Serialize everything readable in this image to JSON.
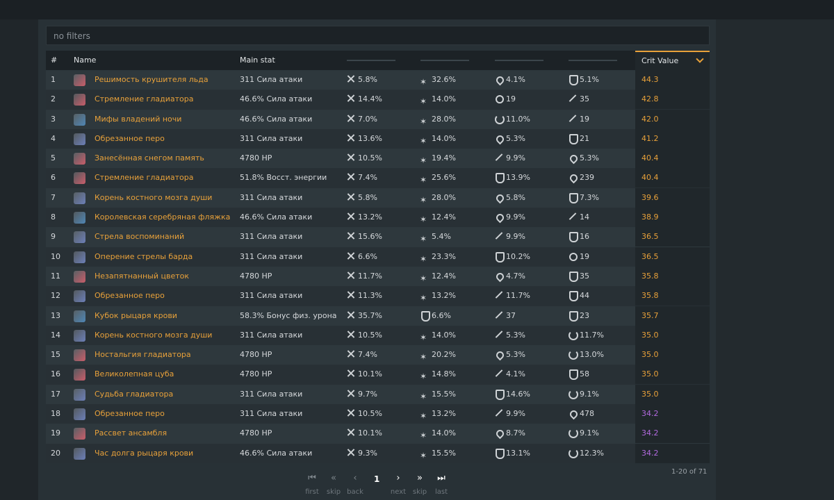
{
  "filter": {
    "text": "no filters"
  },
  "colors": {
    "accent": "#e8a13a",
    "crit_gold": "#e8a13a",
    "crit_purple": "#b26adf"
  },
  "header": {
    "num": "#",
    "name": "Name",
    "main_stat": "Main stat",
    "crit": "Crit Value"
  },
  "rows": [
    {
      "num": "1",
      "name": "Решимость крушителя льда",
      "icon": "flower-icon",
      "main": "311 Сила атаки",
      "s1": {
        "i": "sword",
        "v": "5.8%"
      },
      "s2": {
        "i": "star",
        "v": "32.6%"
      },
      "s3": {
        "i": "drop",
        "v": "4.1%"
      },
      "s4": {
        "i": "shield",
        "v": "5.1%"
      },
      "crit": "44.3",
      "tier": "gold"
    },
    {
      "num": "2",
      "name": "Стремление гладиатора",
      "icon": "flower-icon",
      "main": "46.6% Сила атаки",
      "s1": {
        "i": "sword",
        "v": "14.4%"
      },
      "s2": {
        "i": "star",
        "v": "14.0%"
      },
      "s3": {
        "i": "em",
        "v": "19"
      },
      "s4": {
        "i": "spear",
        "v": "35"
      },
      "crit": "42.8",
      "tier": "gold"
    },
    {
      "num": "3",
      "name": "Мифы владений ночи",
      "icon": "goblet-icon",
      "main": "46.6% Сила атаки",
      "s1": {
        "i": "sword",
        "v": "7.0%"
      },
      "s2": {
        "i": "star",
        "v": "28.0%"
      },
      "s3": {
        "i": "recharge",
        "v": "11.0%"
      },
      "s4": {
        "i": "spear",
        "v": "19"
      },
      "crit": "42.0",
      "tier": "gold"
    },
    {
      "num": "4",
      "name": "Обрезанное перо",
      "icon": "plume-icon",
      "main": "311 Сила атаки",
      "s1": {
        "i": "sword",
        "v": "13.6%"
      },
      "s2": {
        "i": "star",
        "v": "14.0%"
      },
      "s3": {
        "i": "drop",
        "v": "5.3%"
      },
      "s4": {
        "i": "shield",
        "v": "21"
      },
      "crit": "41.2",
      "tier": "gold"
    },
    {
      "num": "5",
      "name": "Занесённая снегом память",
      "icon": "flower-icon",
      "main": "4780 HP",
      "s1": {
        "i": "sword",
        "v": "10.5%"
      },
      "s2": {
        "i": "star",
        "v": "19.4%"
      },
      "s3": {
        "i": "spear",
        "v": "9.9%"
      },
      "s4": {
        "i": "drop",
        "v": "5.3%"
      },
      "crit": "40.4",
      "tier": "gold"
    },
    {
      "num": "6",
      "name": "Стремление гладиатора",
      "icon": "flower-icon",
      "main": "51.8% Восст. энергии",
      "s1": {
        "i": "sword",
        "v": "7.4%"
      },
      "s2": {
        "i": "star",
        "v": "25.6%"
      },
      "s3": {
        "i": "shield",
        "v": "13.9%"
      },
      "s4": {
        "i": "drop",
        "v": "239"
      },
      "crit": "40.4",
      "tier": "gold"
    },
    {
      "num": "7",
      "name": "Корень костного мозга души",
      "icon": "plume-icon",
      "main": "311 Сила атаки",
      "s1": {
        "i": "sword",
        "v": "5.8%"
      },
      "s2": {
        "i": "star",
        "v": "28.0%"
      },
      "s3": {
        "i": "drop",
        "v": "5.8%"
      },
      "s4": {
        "i": "shield",
        "v": "7.3%"
      },
      "crit": "39.6",
      "tier": "gold"
    },
    {
      "num": "8",
      "name": "Королевская серебряная фляжка",
      "icon": "goblet-icon",
      "main": "46.6% Сила атаки",
      "s1": {
        "i": "sword",
        "v": "13.2%"
      },
      "s2": {
        "i": "star",
        "v": "12.4%"
      },
      "s3": {
        "i": "drop",
        "v": "9.9%"
      },
      "s4": {
        "i": "spear",
        "v": "14"
      },
      "crit": "38.9",
      "tier": "gold"
    },
    {
      "num": "9",
      "name": "Стрела воспоминаний",
      "icon": "plume-icon",
      "main": "311 Сила атаки",
      "s1": {
        "i": "sword",
        "v": "15.6%"
      },
      "s2": {
        "i": "star",
        "v": "5.4%"
      },
      "s3": {
        "i": "spear",
        "v": "9.9%"
      },
      "s4": {
        "i": "shield",
        "v": "16"
      },
      "crit": "36.5",
      "tier": "gold"
    },
    {
      "num": "10",
      "name": "Оперение стрелы барда",
      "icon": "plume-icon",
      "main": "311 Сила атаки",
      "s1": {
        "i": "sword",
        "v": "6.6%"
      },
      "s2": {
        "i": "star",
        "v": "23.3%"
      },
      "s3": {
        "i": "shield",
        "v": "10.2%"
      },
      "s4": {
        "i": "em",
        "v": "19"
      },
      "crit": "36.5",
      "tier": "gold"
    },
    {
      "num": "11",
      "name": "Незапятнанный цветок",
      "icon": "flower-icon",
      "main": "4780 HP",
      "s1": {
        "i": "sword",
        "v": "11.7%"
      },
      "s2": {
        "i": "star",
        "v": "12.4%"
      },
      "s3": {
        "i": "drop",
        "v": "4.7%"
      },
      "s4": {
        "i": "shield",
        "v": "35"
      },
      "crit": "35.8",
      "tier": "gold"
    },
    {
      "num": "12",
      "name": "Обрезанное перо",
      "icon": "plume-icon",
      "main": "311 Сила атаки",
      "s1": {
        "i": "sword",
        "v": "11.3%"
      },
      "s2": {
        "i": "star",
        "v": "13.2%"
      },
      "s3": {
        "i": "spear",
        "v": "11.7%"
      },
      "s4": {
        "i": "shield",
        "v": "44"
      },
      "crit": "35.8",
      "tier": "gold"
    },
    {
      "num": "13",
      "name": "Кубок рыцаря крови",
      "icon": "goblet-icon",
      "main": "58.3% Бонус физ. урона",
      "s1": {
        "i": "sword",
        "v": "35.7%"
      },
      "s2": {
        "i": "shield",
        "v": "6.6%"
      },
      "s3": {
        "i": "spear",
        "v": "37"
      },
      "s4": {
        "i": "shield",
        "v": "23"
      },
      "crit": "35.7",
      "tier": "gold"
    },
    {
      "num": "14",
      "name": "Корень костного мозга души",
      "icon": "plume-icon",
      "main": "311 Сила атаки",
      "s1": {
        "i": "sword",
        "v": "10.5%"
      },
      "s2": {
        "i": "star",
        "v": "14.0%"
      },
      "s3": {
        "i": "spear",
        "v": "5.3%"
      },
      "s4": {
        "i": "recharge",
        "v": "11.7%"
      },
      "crit": "35.0",
      "tier": "gold"
    },
    {
      "num": "15",
      "name": "Ностальгия гладиатора",
      "icon": "flower-icon",
      "main": "4780 HP",
      "s1": {
        "i": "sword",
        "v": "7.4%"
      },
      "s2": {
        "i": "star",
        "v": "20.2%"
      },
      "s3": {
        "i": "drop",
        "v": "5.3%"
      },
      "s4": {
        "i": "recharge",
        "v": "13.0%"
      },
      "crit": "35.0",
      "tier": "gold"
    },
    {
      "num": "16",
      "name": "Великолепная цуба",
      "icon": "flower-icon",
      "main": "4780 HP",
      "s1": {
        "i": "sword",
        "v": "10.1%"
      },
      "s2": {
        "i": "star",
        "v": "14.8%"
      },
      "s3": {
        "i": "spear",
        "v": "4.1%"
      },
      "s4": {
        "i": "shield",
        "v": "58"
      },
      "crit": "35.0",
      "tier": "gold"
    },
    {
      "num": "17",
      "name": "Судьба гладиатора",
      "icon": "plume-icon",
      "main": "311 Сила атаки",
      "s1": {
        "i": "sword",
        "v": "9.7%"
      },
      "s2": {
        "i": "star",
        "v": "15.5%"
      },
      "s3": {
        "i": "shield",
        "v": "14.6%"
      },
      "s4": {
        "i": "recharge",
        "v": "9.1%"
      },
      "crit": "35.0",
      "tier": "gold"
    },
    {
      "num": "18",
      "name": "Обрезанное перо",
      "icon": "plume-icon",
      "main": "311 Сила атаки",
      "s1": {
        "i": "sword",
        "v": "10.5%"
      },
      "s2": {
        "i": "star",
        "v": "13.2%"
      },
      "s3": {
        "i": "spear",
        "v": "9.9%"
      },
      "s4": {
        "i": "drop",
        "v": "478"
      },
      "crit": "34.2",
      "tier": "purple"
    },
    {
      "num": "19",
      "name": "Рассвет ансамбля",
      "icon": "flower-icon",
      "main": "4780 HP",
      "s1": {
        "i": "sword",
        "v": "10.1%"
      },
      "s2": {
        "i": "star",
        "v": "14.0%"
      },
      "s3": {
        "i": "drop",
        "v": "8.7%"
      },
      "s4": {
        "i": "recharge",
        "v": "9.1%"
      },
      "crit": "34.2",
      "tier": "purple"
    },
    {
      "num": "20",
      "name": "Час долга рыцаря крови",
      "icon": "plume-icon",
      "main": "46.6% Сила атаки",
      "s1": {
        "i": "sword",
        "v": "9.3%"
      },
      "s2": {
        "i": "star",
        "v": "15.5%"
      },
      "s3": {
        "i": "shield",
        "v": "13.1%"
      },
      "s4": {
        "i": "recharge",
        "v": "12.3%"
      },
      "crit": "34.2",
      "tier": "purple"
    }
  ],
  "pager": {
    "first": "first",
    "skip_back": "skip",
    "back": "back",
    "page": "1",
    "next": "next",
    "skip_next": "skip",
    "last": "last",
    "count": "1-20 of 71"
  }
}
